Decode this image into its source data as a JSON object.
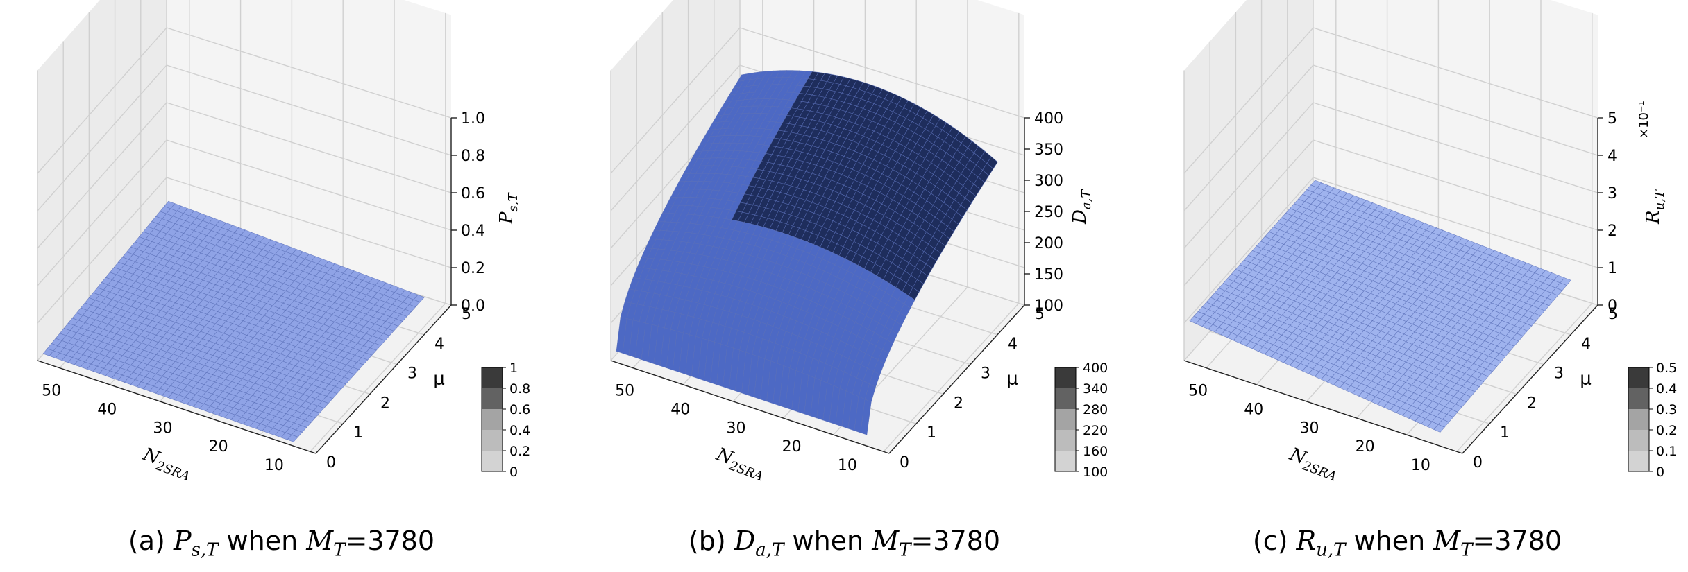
{
  "chart_data": [
    {
      "type": "surface",
      "panel": "a",
      "caption": {
        "prefix": "(a) ",
        "sym": "P",
        "sub": "s,T",
        "mid": " when ",
        "msym": "M",
        "msub": "T",
        "val": "=3780"
      },
      "xlabel": {
        "sym": "N",
        "sub": "2SRA"
      },
      "ylabel": "μ",
      "zlabel": {
        "sym": "P",
        "sub": "s,T"
      },
      "x_ticks": [
        "50",
        "40",
        "30",
        "20",
        "10"
      ],
      "y_ticks": [
        "0",
        "1",
        "2",
        "3",
        "4",
        "5"
      ],
      "z_ticks": [
        "0.0",
        "0.2",
        "0.4",
        "0.6",
        "0.8",
        "1.0"
      ],
      "z_exponent": "",
      "xlim": [
        5,
        55
      ],
      "ylim": [
        0,
        5
      ],
      "zlim": [
        0,
        1
      ],
      "colorbar_ticks": [
        "0",
        "0.2",
        "0.4",
        "0.6",
        "0.8",
        "1"
      ],
      "surface_summary": {
        "z_min": 0.01,
        "z_max": 0.12,
        "trend": "nearly flat, rising slightly with N_2SRA and mu"
      },
      "color": "#8fa3e6"
    },
    {
      "type": "surface",
      "panel": "b",
      "caption": {
        "prefix": "(b) ",
        "sym": "D",
        "sub": "a,T",
        "mid": " when ",
        "msym": "M",
        "msub": "T",
        "val": "=3780"
      },
      "xlabel": {
        "sym": "N",
        "sub": "2SRA"
      },
      "ylabel": "μ",
      "zlabel": {
        "sym": "D",
        "sub": "a,T"
      },
      "x_ticks": [
        "50",
        "40",
        "30",
        "20",
        "10"
      ],
      "y_ticks": [
        "0",
        "1",
        "2",
        "3",
        "4",
        "5"
      ],
      "z_ticks": [
        "100",
        "150",
        "200",
        "250",
        "300",
        "350",
        "400"
      ],
      "z_exponent": "",
      "xlim": [
        5,
        55
      ],
      "ylim": [
        0,
        5
      ],
      "zlim": [
        100,
        400
      ],
      "colorbar_ticks": [
        "100",
        "160",
        "220",
        "280",
        "340",
        "400"
      ],
      "surface_summary": {
        "z_min": 110,
        "z_max": 385,
        "trend": "rises steeply with mu, peaks at mid N_2SRA"
      },
      "color": "#4d69c4",
      "color_dark": "#1e2d5c"
    },
    {
      "type": "surface",
      "panel": "c",
      "caption": {
        "prefix": "(c) ",
        "sym": "R",
        "sub": "u,T",
        "mid": " when ",
        "msym": "M",
        "msub": "T",
        "val": "=3780"
      },
      "xlabel": {
        "sym": "N",
        "sub": "2SRA"
      },
      "ylabel": "μ",
      "zlabel": {
        "sym": "R",
        "sub": "u,T"
      },
      "x_ticks": [
        "50",
        "40",
        "30",
        "20",
        "10"
      ],
      "y_ticks": [
        "0",
        "1",
        "2",
        "3",
        "4",
        "5"
      ],
      "z_ticks": [
        "0",
        "1",
        "2",
        "3",
        "4",
        "5"
      ],
      "z_exponent": "×10⁻¹",
      "xlim": [
        5,
        55
      ],
      "ylim": [
        0,
        5
      ],
      "zlim": [
        0,
        5
      ],
      "colorbar_ticks": [
        "0",
        "0.1",
        "0.2",
        "0.3",
        "0.4",
        "0.5"
      ],
      "surface_summary": {
        "z_min": 0.2,
        "z_max": 1.4,
        "trend": "nearly flat, slight rise toward large N_2SRA and small mu"
      },
      "color": "#9fb3ee"
    }
  ]
}
